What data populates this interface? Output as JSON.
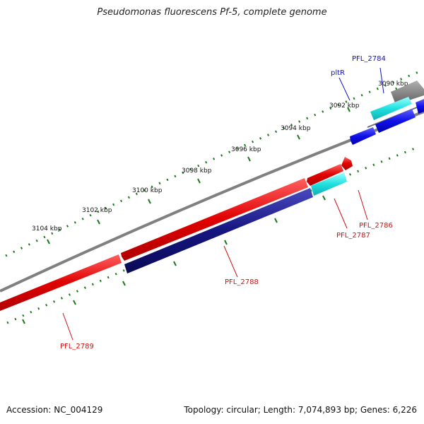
{
  "title": "Pseudomonas fluorescens Pf-5, complete genome",
  "footer": {
    "accession": "Accession: NC_004129",
    "topology": "Topology: circular; Length: 7,074,893 bp; Genes: 6,226"
  },
  "ticks": [
    "3090 kbp",
    "3092 kbp",
    "3094 kbp",
    "3096 kbp",
    "3098 kbp",
    "3100 kbp",
    "3102 kbp",
    "3104 kbp"
  ],
  "genes": [
    {
      "name": "PFL_2784",
      "color": "#1010c8"
    },
    {
      "name": "pltR",
      "color": "#1010c8"
    },
    {
      "name": "PFL_2786",
      "color": "#d01010"
    },
    {
      "name": "PFL_2787",
      "color": "#d01010"
    },
    {
      "name": "PFL_2788",
      "color": "#d01010"
    },
    {
      "name": "PFL_2789",
      "color": "#d01010"
    }
  ],
  "colors": {
    "backbone": "#808080",
    "forward_cds": "#e01010",
    "reverse_cds": "#1a1a80",
    "rna": "#20d8d8",
    "other": "#1515e0",
    "ticks": "#1f7a1f"
  }
}
